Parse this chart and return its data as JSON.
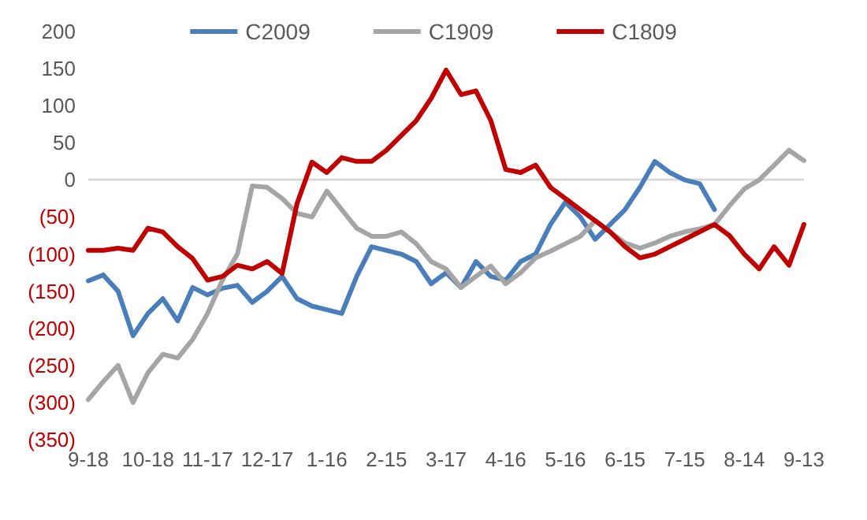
{
  "chart_data": {
    "type": "line",
    "categories": [
      "9-18",
      null,
      null,
      null,
      "10-18",
      null,
      null,
      null,
      "11-17",
      null,
      null,
      null,
      "12-17",
      null,
      null,
      null,
      "1-16",
      null,
      null,
      null,
      "2-15",
      null,
      null,
      null,
      "3-17",
      null,
      null,
      null,
      "4-16",
      null,
      null,
      null,
      "5-16",
      null,
      null,
      null,
      "6-15",
      null,
      null,
      null,
      "7-15",
      null,
      null,
      null,
      "8-14",
      null,
      null,
      null,
      "9-13"
    ],
    "series": [
      {
        "name": "C2009",
        "color": "#4a7ebb",
        "values": [
          -136,
          -128,
          -150,
          -210,
          -180,
          -160,
          -190,
          -145,
          -155,
          -146,
          -142,
          -165,
          -150,
          -130,
          -160,
          -170,
          -175,
          -180,
          -130,
          -90,
          -95,
          -100,
          -110,
          -140,
          -125,
          -145,
          -110,
          -130,
          -135,
          -110,
          -100,
          -60,
          -30,
          -50,
          -80,
          -60,
          -40,
          -10,
          25,
          10,
          0,
          -5,
          -40,
          null,
          null,
          null,
          null,
          null,
          null
        ]
      },
      {
        "name": "C1909",
        "color": "#a5a5a5",
        "values": [
          -296,
          -272,
          -250,
          -300,
          -260,
          -235,
          -240,
          -215,
          -180,
          -135,
          -100,
          -8,
          -10,
          -25,
          -45,
          -50,
          -15,
          -40,
          -65,
          -76,
          -76,
          -70,
          -86,
          -110,
          -120,
          -145,
          -130,
          -116,
          -140,
          -125,
          -105,
          -96,
          -86,
          -76,
          -55,
          -70,
          -85,
          -92,
          -85,
          -76,
          -70,
          -66,
          -60,
          -35,
          -12,
          0,
          20,
          40,
          26
        ]
      },
      {
        "name": "C1809",
        "color": "#c00000",
        "values": [
          -95,
          -95,
          -92,
          -95,
          -65,
          -70,
          -90,
          -106,
          -135,
          -130,
          -115,
          -120,
          -110,
          -126,
          -32,
          24,
          10,
          30,
          25,
          25,
          40,
          60,
          80,
          110,
          148,
          115,
          120,
          80,
          14,
          10,
          20,
          -10,
          -25,
          -40,
          -55,
          -70,
          -90,
          -105,
          -100,
          -90,
          -80,
          -70,
          -60,
          -75,
          -100,
          -120,
          -90,
          -115,
          -60
        ]
      }
    ],
    "ylim": [
      -350,
      200
    ],
    "yticks": [
      {
        "value": -350,
        "label": "(350)"
      },
      {
        "value": -300,
        "label": "(300)"
      },
      {
        "value": -250,
        "label": "(250)"
      },
      {
        "value": -200,
        "label": "(200)"
      },
      {
        "value": -150,
        "label": "(150)"
      },
      {
        "value": -100,
        "label": "(100)"
      },
      {
        "value": -50,
        "label": "(50)"
      },
      0,
      50,
      100,
      150,
      200
    ],
    "ref_lines": [
      {
        "axis": "y",
        "value": 0,
        "color": "#d9d9d9"
      }
    ],
    "grid": false,
    "legend": "top",
    "marker": "none",
    "line_style": "solid"
  }
}
